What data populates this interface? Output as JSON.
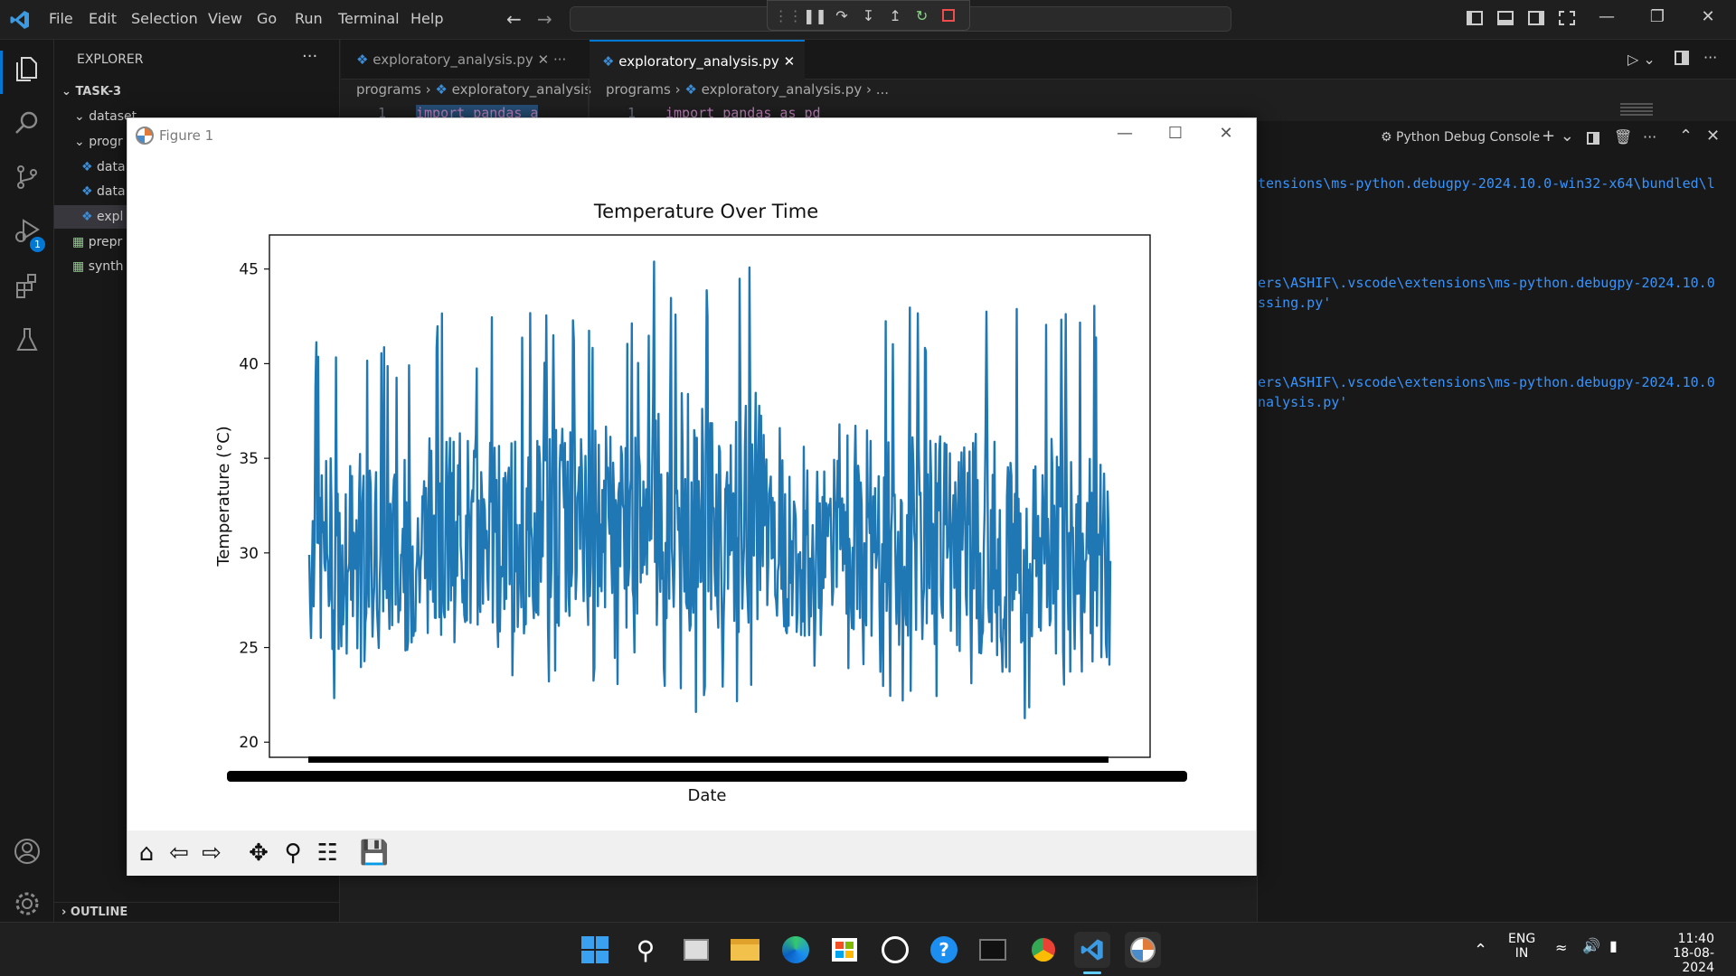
{
  "menu": [
    "File",
    "Edit",
    "Selection",
    "View",
    "Go",
    "Run",
    "Terminal",
    "Help"
  ],
  "explorer": {
    "title": "EXPLORER",
    "more": "···",
    "workspace": "TASK-3",
    "items": [
      "dataset",
      "progr",
      "data",
      "data",
      "expl",
      "prepr",
      "synth"
    ],
    "outline": "OUTLINE"
  },
  "tabs": [
    {
      "label": "exploratory_analysis.py"
    },
    {
      "label": "exploratory_analysis.py"
    }
  ],
  "breadcrumbs": {
    "left": [
      "programs",
      "exploratory_analysis"
    ],
    "right": [
      "programs",
      "exploratory_analysis.py",
      "..."
    ]
  },
  "code": {
    "line_number": "1",
    "left_line": "import pandas a",
    "right_line": "import pandas as pd"
  },
  "panel": {
    "title": "Python Debug Console",
    "lines": [
      "tensions\\ms-python.debugpy-2024.10.0-win32-x64\\bundled\\l",
      "ers\\ASHIF\\.vscode\\extensions\\ms-python.debugpy-2024.10.0",
      "ssing.py'",
      "ers\\ASHIF\\.vscode\\extensions\\ms-python.debugpy-2024.10.0",
      "nalysis.py'"
    ]
  },
  "figure": {
    "window_title": "Figure 1",
    "chart_data": {
      "type": "line",
      "title": "Temperature Over Time",
      "xlabel": "Date",
      "ylabel": "Temperature (°C)",
      "ylim": [
        19.2,
        46.8
      ],
      "yticks": [
        20,
        25,
        30,
        35,
        40,
        45
      ],
      "series_color": "#1f77b4",
      "segments": [
        {
          "lo": 22.3,
          "hi": 41.7,
          "mean": 30.0
        },
        {
          "lo": 23.0,
          "hi": 42.7,
          "mean": 31.0
        },
        {
          "lo": 22.5,
          "hi": 42.6,
          "mean": 31.5
        },
        {
          "lo": 21.5,
          "hi": 45.4,
          "mean": 32.0
        },
        {
          "lo": 21.5,
          "hi": 37.5,
          "mean": 30.0
        },
        {
          "lo": 22.0,
          "hi": 43.5,
          "mean": 30.5
        },
        {
          "lo": 21.0,
          "hi": 44.2,
          "mean": 30.0
        }
      ]
    }
  },
  "clock": {
    "time": "11:40",
    "date": "18-08-2024"
  },
  "lang": {
    "line1": "ENG",
    "line2": "IN"
  },
  "badge": "1"
}
